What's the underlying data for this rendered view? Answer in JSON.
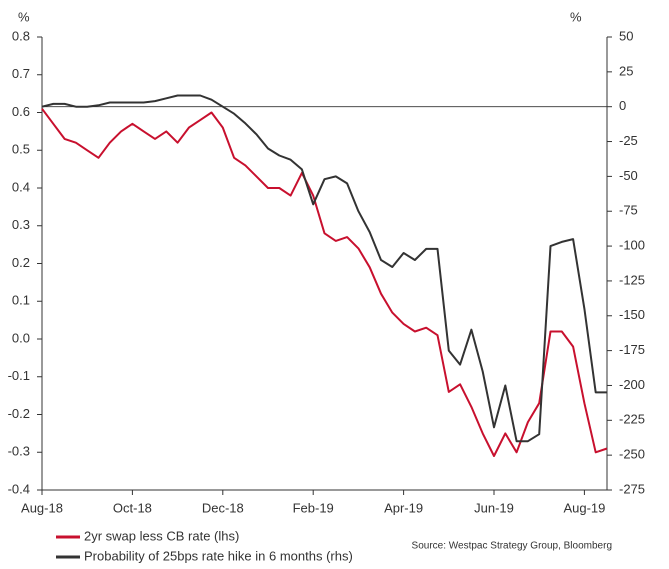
{
  "chart_data": {
    "type": "line",
    "y_label": "%",
    "y2_label": "%",
    "source": "Source: Westpac Strategy Group, Bloomberg",
    "categories": [
      "Aug-18",
      null,
      null,
      null,
      null,
      null,
      null,
      null,
      "Oct-18",
      null,
      null,
      null,
      null,
      null,
      null,
      null,
      "Dec-18",
      null,
      null,
      null,
      null,
      null,
      null,
      null,
      "Feb-19",
      null,
      null,
      null,
      null,
      null,
      null,
      null,
      "Apr-19",
      null,
      null,
      null,
      null,
      null,
      null,
      null,
      "Jun-19",
      null,
      null,
      null,
      null,
      null,
      null,
      null,
      "Aug-19",
      null,
      null
    ],
    "series": [
      {
        "name": "2yr swap less CB rate (lhs)",
        "color": "#c8102e",
        "values": [
          0.61,
          0.57,
          0.53,
          0.52,
          0.5,
          0.48,
          0.52,
          0.55,
          0.57,
          0.55,
          0.53,
          0.55,
          0.52,
          0.56,
          0.58,
          0.6,
          0.56,
          0.48,
          0.46,
          0.43,
          0.4,
          0.4,
          0.38,
          0.44,
          0.38,
          0.28,
          0.26,
          0.27,
          0.24,
          0.19,
          0.12,
          0.07,
          0.04,
          0.02,
          0.03,
          0.01,
          -0.14,
          -0.12,
          -0.18,
          -0.25,
          -0.31,
          -0.25,
          -0.3,
          -0.22,
          -0.17,
          0.02,
          0.02,
          -0.02,
          -0.17,
          -0.3,
          -0.29
        ]
      },
      {
        "name": "Probability of 25bps rate hike in 6 months (rhs)",
        "color": "#333333",
        "axis": "y2",
        "values": [
          0,
          2,
          2,
          0,
          0,
          1,
          3,
          3,
          3,
          3,
          4,
          6,
          8,
          8,
          8,
          5,
          0,
          -5,
          -12,
          -20,
          -30,
          -35,
          -38,
          -45,
          -70,
          -52,
          -50,
          -55,
          -75,
          -90,
          -110,
          -115,
          -105,
          -110,
          -102,
          -102,
          -175,
          -185,
          -160,
          -190,
          -230,
          -200,
          -240,
          -240,
          -235,
          -100,
          -97,
          -95,
          -145,
          -205,
          -205
        ]
      }
    ],
    "ylim": [
      -0.4,
      0.8
    ],
    "yticks": [
      -0.4,
      -0.3,
      -0.2,
      -0.1,
      {
        "value": 0,
        "label": "0.0"
      },
      0.1,
      0.2,
      0.3,
      0.4,
      0.5,
      0.6,
      0.7,
      0.8
    ],
    "y2lim": [
      -275,
      50
    ],
    "y2ticks": [
      -275,
      -250,
      -225,
      -200,
      -175,
      -150,
      -125,
      -100,
      -75,
      -50,
      -25,
      0,
      25,
      50
    ],
    "zero_line_y2": true,
    "grid": false,
    "legend": "bottom"
  }
}
